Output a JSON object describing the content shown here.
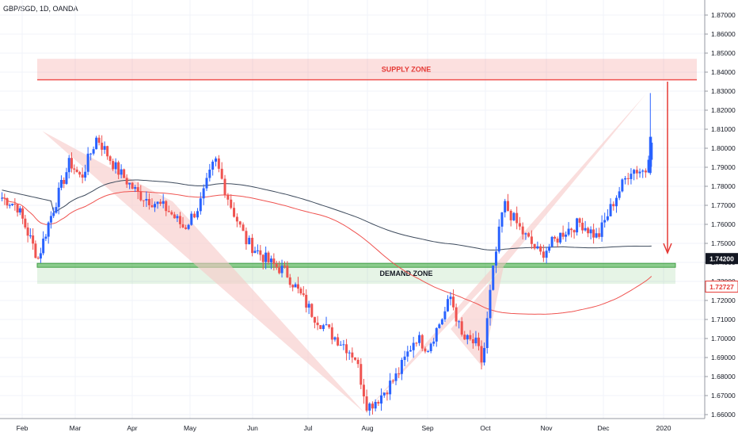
{
  "chart_title": "GBP/SGD, 1D, OANDA",
  "chart_data": {
    "type": "candlestick",
    "title": "GBP/SGD, 1D, OANDA",
    "x_ticks": [
      "Feb",
      "Mar",
      "Apr",
      "May",
      "Jun",
      "Jul",
      "Aug",
      "Sep",
      "Oct",
      "Nov",
      "Dec",
      "2020"
    ],
    "y_ticks": [
      "1.87000",
      "1.86000",
      "1.85000",
      "1.84000",
      "1.83000",
      "1.82000",
      "1.81000",
      "1.80000",
      "1.79000",
      "1.78000",
      "1.77000",
      "1.76000",
      "1.75000",
      "1.74000",
      "1.73000",
      "1.72000",
      "1.71000",
      "1.70000",
      "1.69000",
      "1.68000",
      "1.67000",
      "1.66000"
    ],
    "ylim": [
      1.656,
      1.877
    ],
    "price_labels": [
      {
        "value": 1.742,
        "text": "1.74200",
        "bg": "#131722",
        "fg": "#ffffff"
      },
      {
        "value": 1.72727,
        "text": "1.72727",
        "bg": "#ffffff",
        "fg": "#e53935"
      }
    ],
    "zones": [
      {
        "name": "SUPPLY ZONE",
        "from": 1.836,
        "to": 1.847,
        "color": "#ef5350"
      },
      {
        "name": "DEMAND ZONE",
        "from": 1.7287,
        "to": 1.7395,
        "color": "#4caf50"
      }
    ],
    "pattern_points": [
      {
        "x": "Mar",
        "y": 1.809
      },
      {
        "x": "Aug",
        "y": 1.661
      },
      {
        "x": "Dec",
        "y": 1.829
      }
    ],
    "colors": {
      "up": "#2962ff",
      "down": "#ef5350",
      "ma_long": "#3d4a5c",
      "ma_short": "#ef5350",
      "pattern": "#f7c8c6"
    }
  }
}
